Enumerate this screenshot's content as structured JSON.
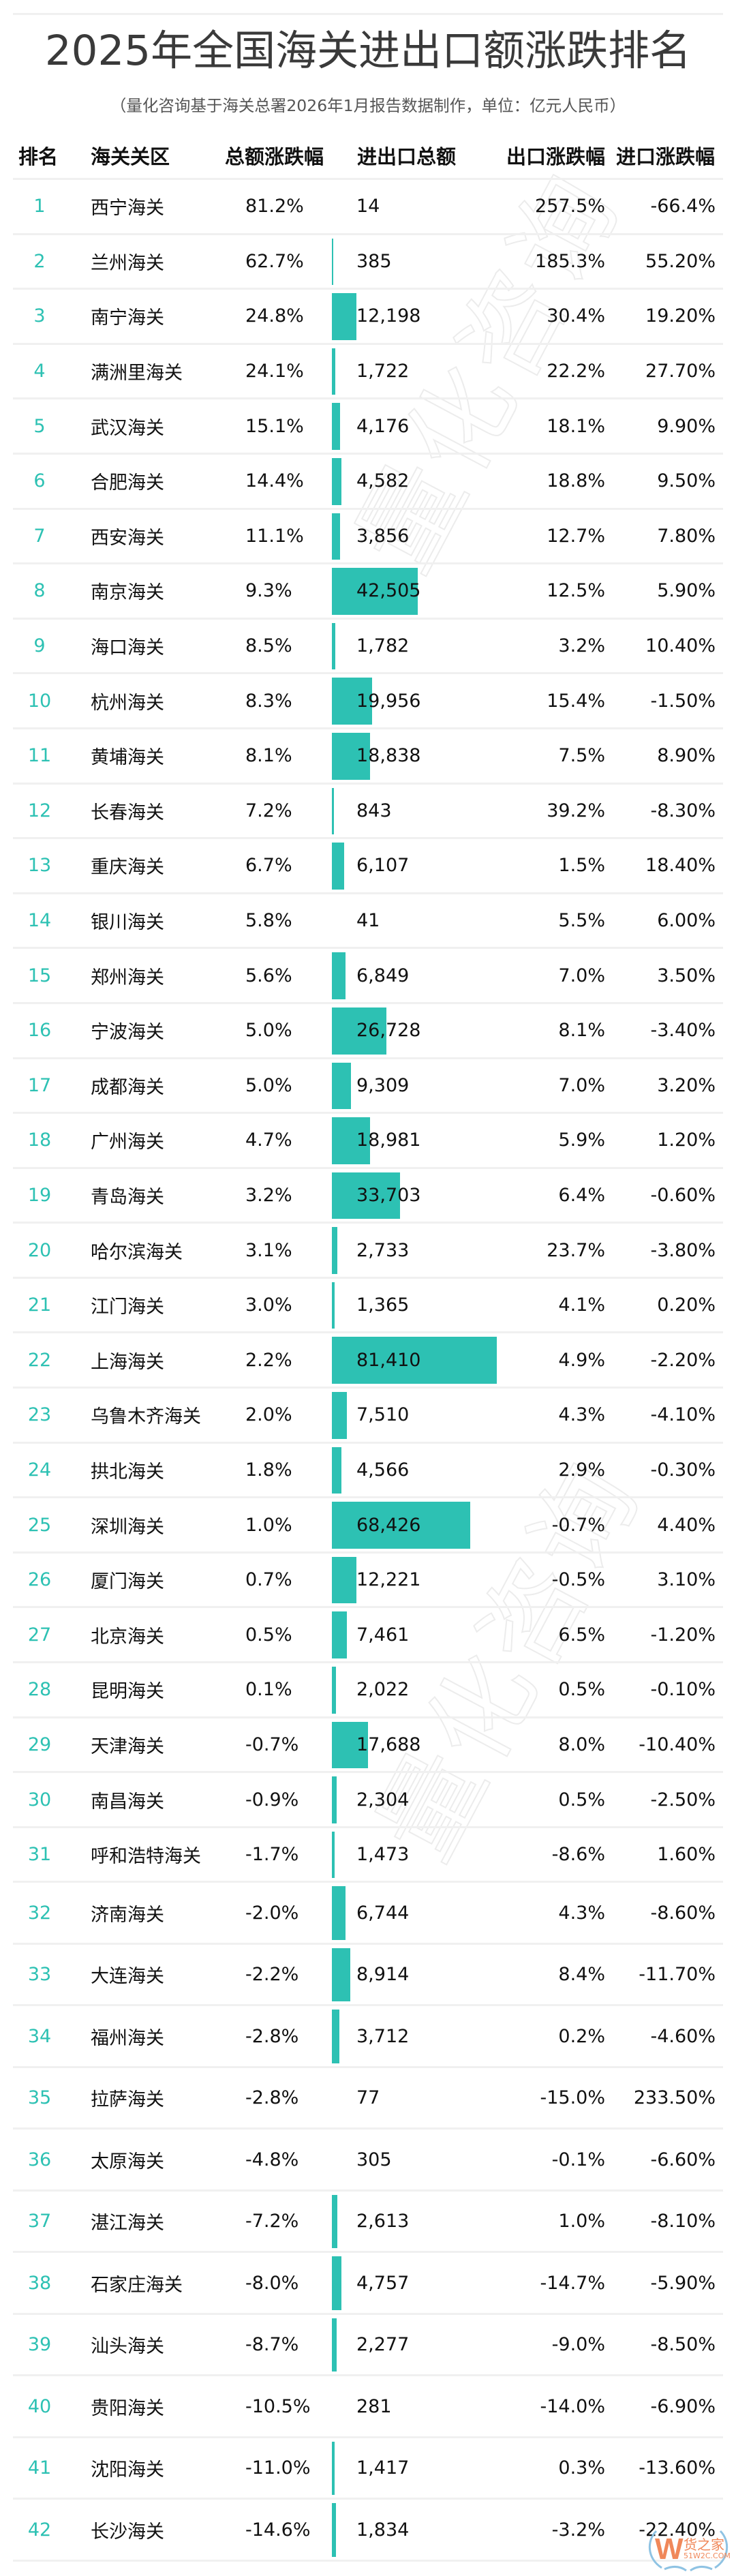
{
  "page": {
    "title": "2025年全国海关进出口额涨跌排名",
    "subtitle": "（量化咨询基于海关总署2026年1月报告数据制作，单位：亿元人民币）",
    "watermark": "量化咨询",
    "logo": {
      "letter": "W",
      "name": "货之家",
      "domain": "51W2C.COM"
    },
    "colors": {
      "accent": "#2DC1B3",
      "separator": "#f0f0f0",
      "title": "#3a3a3a"
    }
  },
  "table": {
    "headers": {
      "rank": "排名",
      "name": "海关关区",
      "total_change": "总额涨跌幅",
      "amount": "进出口总额",
      "export_change": "出口涨跌幅",
      "import_change": "进口涨跌幅"
    },
    "rows": [
      {
        "rank": "1",
        "name": "西宁海关",
        "total": "81.2%",
        "amount": "14",
        "export": "257.5%",
        "import": "-66.4%"
      },
      {
        "rank": "2",
        "name": "兰州海关",
        "total": "62.7%",
        "amount": "385",
        "export": "185.3%",
        "import": "55.20%"
      },
      {
        "rank": "3",
        "name": "南宁海关",
        "total": "24.8%",
        "amount": "12,198",
        "export": "30.4%",
        "import": "19.20%"
      },
      {
        "rank": "4",
        "name": "满洲里海关",
        "total": "24.1%",
        "amount": "1,722",
        "export": "22.2%",
        "import": "27.70%"
      },
      {
        "rank": "5",
        "name": "武汉海关",
        "total": "15.1%",
        "amount": "4,176",
        "export": "18.1%",
        "import": "9.90%"
      },
      {
        "rank": "6",
        "name": "合肥海关",
        "total": "14.4%",
        "amount": "4,582",
        "export": "18.8%",
        "import": "9.50%"
      },
      {
        "rank": "7",
        "name": "西安海关",
        "total": "11.1%",
        "amount": "3,856",
        "export": "12.7%",
        "import": "7.80%"
      },
      {
        "rank": "8",
        "name": "南京海关",
        "total": "9.3%",
        "amount": "42,505",
        "export": "12.5%",
        "import": "5.90%"
      },
      {
        "rank": "9",
        "name": "海口海关",
        "total": "8.5%",
        "amount": "1,782",
        "export": "3.2%",
        "import": "10.40%"
      },
      {
        "rank": "10",
        "name": "杭州海关",
        "total": "8.3%",
        "amount": "19,956",
        "export": "15.4%",
        "import": "-1.50%"
      },
      {
        "rank": "11",
        "name": "黄埔海关",
        "total": "8.1%",
        "amount": "18,838",
        "export": "7.5%",
        "import": "8.90%"
      },
      {
        "rank": "12",
        "name": "长春海关",
        "total": "7.2%",
        "amount": "843",
        "export": "39.2%",
        "import": "-8.30%"
      },
      {
        "rank": "13",
        "name": "重庆海关",
        "total": "6.7%",
        "amount": "6,107",
        "export": "1.5%",
        "import": "18.40%"
      },
      {
        "rank": "14",
        "name": "银川海关",
        "total": "5.8%",
        "amount": "41",
        "export": "5.5%",
        "import": "6.00%"
      },
      {
        "rank": "15",
        "name": "郑州海关",
        "total": "5.6%",
        "amount": "6,849",
        "export": "7.0%",
        "import": "3.50%"
      },
      {
        "rank": "16",
        "name": "宁波海关",
        "total": "5.0%",
        "amount": "26,728",
        "export": "8.1%",
        "import": "-3.40%"
      },
      {
        "rank": "17",
        "name": "成都海关",
        "total": "5.0%",
        "amount": "9,309",
        "export": "7.0%",
        "import": "3.20%"
      },
      {
        "rank": "18",
        "name": "广州海关",
        "total": "4.7%",
        "amount": "18,981",
        "export": "5.9%",
        "import": "1.20%"
      },
      {
        "rank": "19",
        "name": "青岛海关",
        "total": "3.2%",
        "amount": "33,703",
        "export": "6.4%",
        "import": "-0.60%"
      },
      {
        "rank": "20",
        "name": "哈尔滨海关",
        "total": "3.1%",
        "amount": "2,733",
        "export": "23.7%",
        "import": "-3.80%"
      },
      {
        "rank": "21",
        "name": "江门海关",
        "total": "3.0%",
        "amount": "1,365",
        "export": "4.1%",
        "import": "0.20%"
      },
      {
        "rank": "22",
        "name": "上海海关",
        "total": "2.2%",
        "amount": "81,410",
        "export": "4.9%",
        "import": "-2.20%"
      },
      {
        "rank": "23",
        "name": "乌鲁木齐海关",
        "total": "2.0%",
        "amount": "7,510",
        "export": "4.3%",
        "import": "-4.10%"
      },
      {
        "rank": "24",
        "name": "拱北海关",
        "total": "1.8%",
        "amount": "4,566",
        "export": "2.9%",
        "import": "-0.30%"
      },
      {
        "rank": "25",
        "name": "深圳海关",
        "total": "1.0%",
        "amount": "68,426",
        "export": "-0.7%",
        "import": "4.40%"
      },
      {
        "rank": "26",
        "name": "厦门海关",
        "total": "0.7%",
        "amount": "12,221",
        "export": "-0.5%",
        "import": "3.10%"
      },
      {
        "rank": "27",
        "name": "北京海关",
        "total": "0.5%",
        "amount": "7,461",
        "export": "6.5%",
        "import": "-1.20%"
      },
      {
        "rank": "28",
        "name": "昆明海关",
        "total": "0.1%",
        "amount": "2,022",
        "export": "0.5%",
        "import": "-0.10%"
      },
      {
        "rank": "29",
        "name": "天津海关",
        "total": "-0.7%",
        "amount": "17,688",
        "export": "8.0%",
        "import": "-10.40%"
      },
      {
        "rank": "30",
        "name": "南昌海关",
        "total": "-0.9%",
        "amount": "2,304",
        "export": "0.5%",
        "import": "-2.50%"
      },
      {
        "rank": "31",
        "name": "呼和浩特海关",
        "total": "-1.7%",
        "amount": "1,473",
        "export": "-8.6%",
        "import": "1.60%"
      },
      {
        "rank": "32",
        "name": "济南海关",
        "total": "-2.0%",
        "amount": "6,744",
        "export": "4.3%",
        "import": "-8.60%"
      },
      {
        "rank": "33",
        "name": "大连海关",
        "total": "-2.2%",
        "amount": "8,914",
        "export": "8.4%",
        "import": "-11.70%"
      },
      {
        "rank": "34",
        "name": "福州海关",
        "total": "-2.8%",
        "amount": "3,712",
        "export": "0.2%",
        "import": "-4.60%"
      },
      {
        "rank": "35",
        "name": "拉萨海关",
        "total": "-2.8%",
        "amount": "77",
        "export": "-15.0%",
        "import": "233.50%"
      },
      {
        "rank": "36",
        "name": "太原海关",
        "total": "-4.8%",
        "amount": "305",
        "export": "-0.1%",
        "import": "-6.60%"
      },
      {
        "rank": "37",
        "name": "湛江海关",
        "total": "-7.2%",
        "amount": "2,613",
        "export": "1.0%",
        "import": "-8.10%"
      },
      {
        "rank": "38",
        "name": "石家庄海关",
        "total": "-8.0%",
        "amount": "4,757",
        "export": "-14.7%",
        "import": "-5.90%"
      },
      {
        "rank": "39",
        "name": "汕头海关",
        "total": "-8.7%",
        "amount": "2,277",
        "export": "-9.0%",
        "import": "-8.50%"
      },
      {
        "rank": "40",
        "name": "贵阳海关",
        "total": "-10.5%",
        "amount": "281",
        "export": "-14.0%",
        "import": "-6.90%"
      },
      {
        "rank": "41",
        "name": "沈阳海关",
        "total": "-11.0%",
        "amount": "1,417",
        "export": "0.3%",
        "import": "-13.60%"
      },
      {
        "rank": "42",
        "name": "长沙海关",
        "total": "-14.6%",
        "amount": "1,834",
        "export": "-3.2%",
        "import": "-22.40%"
      }
    ]
  },
  "chart_data": {
    "type": "table",
    "title": "2025年全国海关进出口额涨跌排名",
    "subtitle": "（量化咨询基于海关总署2026年1月报告数据制作，单位：亿元人民币）",
    "columns": [
      "排名",
      "海关关区",
      "总额涨跌幅",
      "进出口总额",
      "出口涨跌幅",
      "进口涨跌幅"
    ],
    "unit": "亿元人民币",
    "bar_column": "进出口总额",
    "categories": [
      "西宁海关",
      "兰州海关",
      "南宁海关",
      "满洲里海关",
      "武汉海关",
      "合肥海关",
      "西安海关",
      "南京海关",
      "海口海关",
      "杭州海关",
      "黄埔海关",
      "长春海关",
      "重庆海关",
      "银川海关",
      "郑州海关",
      "宁波海关",
      "成都海关",
      "广州海关",
      "青岛海关",
      "哈尔滨海关",
      "江门海关",
      "上海海关",
      "乌鲁木齐海关",
      "拱北海关",
      "深圳海关",
      "厦门海关",
      "北京海关",
      "昆明海关",
      "天津海关",
      "南昌海关",
      "呼和浩特海关",
      "济南海关",
      "大连海关",
      "福州海关",
      "拉萨海关",
      "太原海关",
      "湛江海关",
      "石家庄海关",
      "汕头海关",
      "贵阳海关",
      "沈阳海关",
      "长沙海关"
    ],
    "series": [
      {
        "name": "总额涨跌幅(%)",
        "values": [
          81.2,
          62.7,
          24.8,
          24.1,
          15.1,
          14.4,
          11.1,
          9.3,
          8.5,
          8.3,
          8.1,
          7.2,
          6.7,
          5.8,
          5.6,
          5.0,
          5.0,
          4.7,
          3.2,
          3.1,
          3.0,
          2.2,
          2.0,
          1.8,
          1.0,
          0.7,
          0.5,
          0.1,
          -0.7,
          -0.9,
          -1.7,
          -2.0,
          -2.2,
          -2.8,
          -2.8,
          -4.8,
          -7.2,
          -8.0,
          -8.7,
          -10.5,
          -11.0,
          -14.6
        ]
      },
      {
        "name": "进出口总额(亿元)",
        "values": [
          14,
          385,
          12198,
          1722,
          4176,
          4582,
          3856,
          42505,
          1782,
          19956,
          18838,
          843,
          6107,
          41,
          6849,
          26728,
          9309,
          18981,
          33703,
          2733,
          1365,
          81410,
          7510,
          4566,
          68426,
          12221,
          7461,
          2022,
          17688,
          2304,
          1473,
          6744,
          8914,
          3712,
          77,
          305,
          2613,
          4757,
          2277,
          281,
          1417,
          1834
        ]
      },
      {
        "name": "出口涨跌幅(%)",
        "values": [
          257.5,
          185.3,
          30.4,
          22.2,
          18.1,
          18.8,
          12.7,
          12.5,
          3.2,
          15.4,
          7.5,
          39.2,
          1.5,
          5.5,
          7.0,
          8.1,
          7.0,
          5.9,
          6.4,
          23.7,
          4.1,
          4.9,
          4.3,
          2.9,
          -0.7,
          -0.5,
          6.5,
          0.5,
          8.0,
          0.5,
          -8.6,
          4.3,
          8.4,
          0.2,
          -15.0,
          -0.1,
          1.0,
          -14.7,
          -9.0,
          -14.0,
          0.3,
          -3.2
        ]
      },
      {
        "name": "进口涨跌幅(%)",
        "values": [
          -66.4,
          55.2,
          19.2,
          27.7,
          9.9,
          9.5,
          7.8,
          5.9,
          10.4,
          -1.5,
          8.9,
          -8.3,
          18.4,
          6.0,
          3.5,
          -3.4,
          3.2,
          1.2,
          -0.6,
          -3.8,
          0.2,
          -2.2,
          -4.1,
          -0.3,
          4.4,
          3.1,
          -1.2,
          -0.1,
          -10.4,
          -2.5,
          1.6,
          -8.6,
          -11.7,
          -4.6,
          233.5,
          -6.6,
          -8.1,
          -5.9,
          -8.5,
          -6.9,
          -13.6,
          -22.4
        ]
      }
    ]
  }
}
